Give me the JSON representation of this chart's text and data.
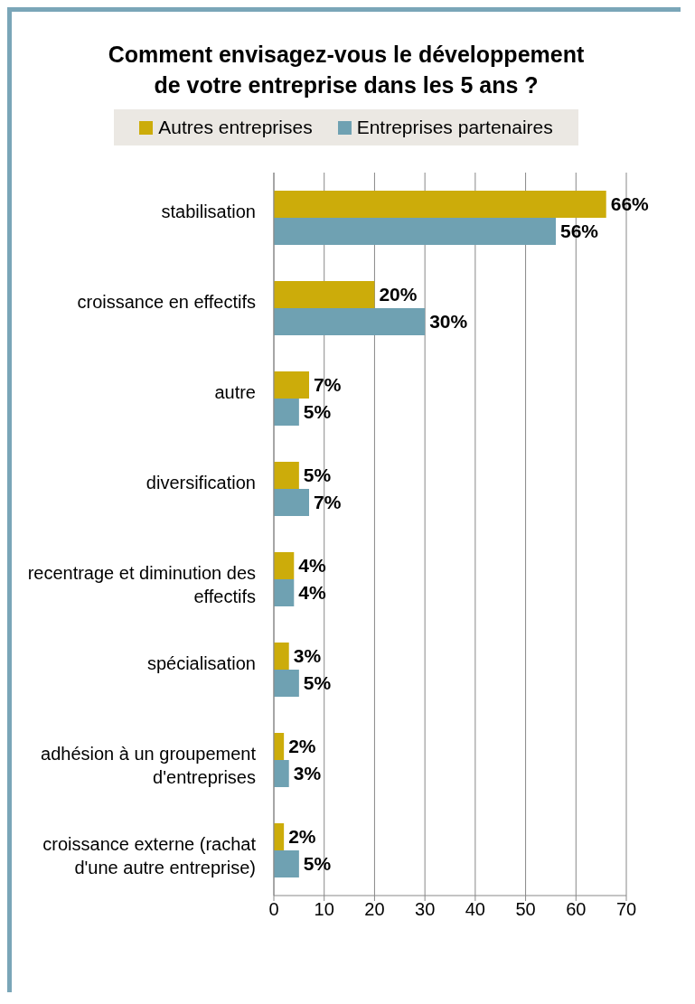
{
  "chart_data": {
    "type": "bar",
    "orientation": "horizontal",
    "title": "Comment envisagez-vous le développement de votre entreprise dans les 5 ans ?",
    "categories": [
      "stabilisation",
      "croissance en effectifs",
      "autre",
      "diversification",
      "recentrage et diminution des effectifs",
      "spécialisation",
      "adhésion à un groupement d'entreprises",
      "croissance externe (rachat d'une autre entreprise)"
    ],
    "series": [
      {
        "name": "Autres entreprises",
        "color": "#ccac0a",
        "values": [
          66,
          20,
          7,
          5,
          4,
          3,
          2,
          2
        ],
        "value_labels": [
          "66%",
          "20%",
          "7%",
          "5%",
          "4%",
          "3%",
          "2%",
          "2%"
        ]
      },
      {
        "name": "Entreprises partenaires",
        "color": "#6fa1b2",
        "values": [
          56,
          30,
          5,
          7,
          4,
          5,
          3,
          5
        ],
        "value_labels": [
          "56%",
          "30%",
          "5%",
          "7%",
          "4%",
          "5%",
          "3%",
          "5%"
        ]
      }
    ],
    "xlim": [
      0,
      70
    ],
    "xticks": [
      0,
      10,
      20,
      30,
      40,
      50,
      60,
      70
    ],
    "grid": "x",
    "legend": "top"
  }
}
